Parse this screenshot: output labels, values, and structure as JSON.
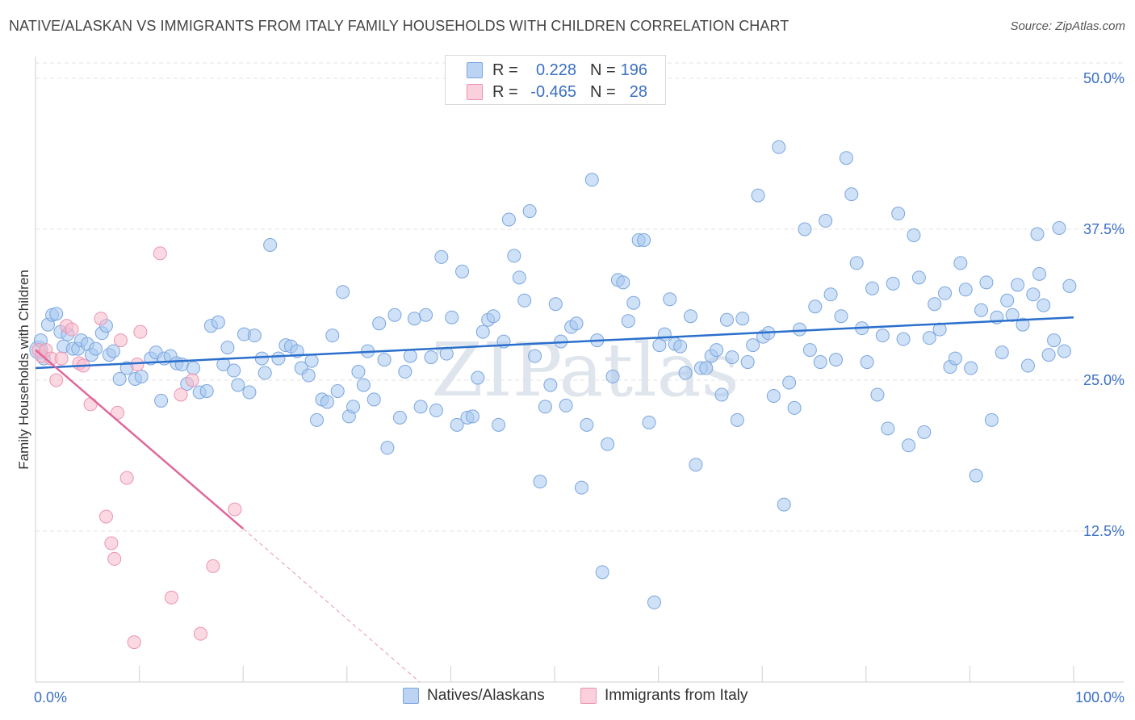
{
  "title": "NATIVE/ALASKAN VS IMMIGRANTS FROM ITALY FAMILY HOUSEHOLDS WITH CHILDREN CORRELATION CHART",
  "source": "Source: ZipAtlas.com",
  "watermark": "ZIPatlas",
  "colors": {
    "blue_fill": "#a8c8f0",
    "blue_stroke": "#7ba6de",
    "blue_line": "#2a6fcc",
    "pink_fill": "#f7b9cc",
    "pink_stroke": "#ec93b0",
    "pink_line": "#e0679a",
    "axis_label": "#3b6fc4",
    "grid": "#e3e3e3"
  },
  "legend_stats": [
    {
      "r_label": "R =",
      "r_value": "0.228",
      "n_label": "N =",
      "n_value": "196"
    },
    {
      "r_label": "R =",
      "r_value": "-0.465",
      "n_label": "N =",
      "n_value": "28"
    }
  ],
  "legend_series": [
    "Natives/Alaskans",
    "Immigrants from Italy"
  ],
  "chart_data": {
    "type": "scatter",
    "title": "NATIVE/ALASKAN VS IMMIGRANTS FROM ITALY FAMILY HOUSEHOLDS WITH CHILDREN CORRELATION CHART",
    "xlabel": "",
    "ylabel": "Family Households with Children",
    "xlim": [
      0,
      100
    ],
    "ylim": [
      0,
      50
    ],
    "x_tick_labels": [
      "0.0%",
      "100.0%"
    ],
    "y_ticks": [
      12.5,
      25.0,
      37.5,
      50.0
    ],
    "y_tick_labels": [
      "12.5%",
      "25.0%",
      "37.5%",
      "50.0%"
    ],
    "grid": true,
    "legend_position": "bottom",
    "series": [
      {
        "name": "Natives/Alaskans",
        "trend": {
          "x": [
            0,
            100
          ],
          "y": [
            26.0,
            30.2
          ]
        },
        "points": [
          [
            0.3,
            27.5
          ],
          [
            0.5,
            28.3
          ],
          [
            0.8,
            26.8
          ],
          [
            1.2,
            29.6
          ],
          [
            1.6,
            30.4
          ],
          [
            2.0,
            30.5
          ],
          [
            2.4,
            29.0
          ],
          [
            2.7,
            27.8
          ],
          [
            3.1,
            28.8
          ],
          [
            3.6,
            27.6
          ],
          [
            4.1,
            27.6
          ],
          [
            4.4,
            28.3
          ],
          [
            5.0,
            28.0
          ],
          [
            5.4,
            27.1
          ],
          [
            5.8,
            27.6
          ],
          [
            6.4,
            28.9
          ],
          [
            6.8,
            29.5
          ],
          [
            7.1,
            27.1
          ],
          [
            7.5,
            27.4
          ],
          [
            8.1,
            25.1
          ],
          [
            8.8,
            26.0
          ],
          [
            9.6,
            25.1
          ],
          [
            10.2,
            25.3
          ],
          [
            11.1,
            26.8
          ],
          [
            11.6,
            27.3
          ],
          [
            12.1,
            23.3
          ],
          [
            12.4,
            26.8
          ],
          [
            13.0,
            27.0
          ],
          [
            13.6,
            26.4
          ],
          [
            14.1,
            26.3
          ],
          [
            14.6,
            24.7
          ],
          [
            15.2,
            26.0
          ],
          [
            15.8,
            24.0
          ],
          [
            16.5,
            24.1
          ],
          [
            16.9,
            29.5
          ],
          [
            17.6,
            29.8
          ],
          [
            18.1,
            26.3
          ],
          [
            18.5,
            27.7
          ],
          [
            19.1,
            25.8
          ],
          [
            19.5,
            24.6
          ],
          [
            20.1,
            28.8
          ],
          [
            20.6,
            24.0
          ],
          [
            21.1,
            28.7
          ],
          [
            21.8,
            26.8
          ],
          [
            22.1,
            25.6
          ],
          [
            22.6,
            36.2
          ],
          [
            23.4,
            26.8
          ],
          [
            24.1,
            27.9
          ],
          [
            24.6,
            27.8
          ],
          [
            25.2,
            27.4
          ],
          [
            25.6,
            26.0
          ],
          [
            26.3,
            25.4
          ],
          [
            26.6,
            26.6
          ],
          [
            27.1,
            21.7
          ],
          [
            27.6,
            23.4
          ],
          [
            28.1,
            23.2
          ],
          [
            28.6,
            28.7
          ],
          [
            29.1,
            24.1
          ],
          [
            29.6,
            32.3
          ],
          [
            30.2,
            22.0
          ],
          [
            30.6,
            22.8
          ],
          [
            31.1,
            25.7
          ],
          [
            31.6,
            24.6
          ],
          [
            32.0,
            27.4
          ],
          [
            32.6,
            23.4
          ],
          [
            33.1,
            29.7
          ],
          [
            33.6,
            26.7
          ],
          [
            33.9,
            19.4
          ],
          [
            34.6,
            30.4
          ],
          [
            35.1,
            21.9
          ],
          [
            35.6,
            25.7
          ],
          [
            36.1,
            27.0
          ],
          [
            36.5,
            30.1
          ],
          [
            37.1,
            22.8
          ],
          [
            37.6,
            30.4
          ],
          [
            38.1,
            26.9
          ],
          [
            38.6,
            22.5
          ],
          [
            39.1,
            35.2
          ],
          [
            39.6,
            27.2
          ],
          [
            40.1,
            30.2
          ],
          [
            40.6,
            21.3
          ],
          [
            41.1,
            34.0
          ],
          [
            41.6,
            21.9
          ],
          [
            42.1,
            22.0
          ],
          [
            42.6,
            25.2
          ],
          [
            43.1,
            29.0
          ],
          [
            43.6,
            30.0
          ],
          [
            44.1,
            30.3
          ],
          [
            44.6,
            21.3
          ],
          [
            45.1,
            28.2
          ],
          [
            45.6,
            38.3
          ],
          [
            46.1,
            35.3
          ],
          [
            46.6,
            33.5
          ],
          [
            47.1,
            31.6
          ],
          [
            47.6,
            39.0
          ],
          [
            48.1,
            27.0
          ],
          [
            48.6,
            16.6
          ],
          [
            49.1,
            22.8
          ],
          [
            49.6,
            24.6
          ],
          [
            50.1,
            31.3
          ],
          [
            50.6,
            28.2
          ],
          [
            51.1,
            22.9
          ],
          [
            51.6,
            29.4
          ],
          [
            52.1,
            29.7
          ],
          [
            52.6,
            16.1
          ],
          [
            53.1,
            21.3
          ],
          [
            53.6,
            41.6
          ],
          [
            54.1,
            28.3
          ],
          [
            54.6,
            9.1
          ],
          [
            55.1,
            19.7
          ],
          [
            55.6,
            25.3
          ],
          [
            56.1,
            33.3
          ],
          [
            56.6,
            33.1
          ],
          [
            57.1,
            29.9
          ],
          [
            57.6,
            31.4
          ],
          [
            58.1,
            36.6
          ],
          [
            58.6,
            36.6
          ],
          [
            59.1,
            21.5
          ],
          [
            59.6,
            6.6
          ],
          [
            60.1,
            27.9
          ],
          [
            60.6,
            28.8
          ],
          [
            61.1,
            31.7
          ],
          [
            61.6,
            28.0
          ],
          [
            62.1,
            27.8
          ],
          [
            62.6,
            25.6
          ],
          [
            63.1,
            30.3
          ],
          [
            63.6,
            18.0
          ],
          [
            64.1,
            26.0
          ],
          [
            64.6,
            26.0
          ],
          [
            65.1,
            27.0
          ],
          [
            65.6,
            27.5
          ],
          [
            66.1,
            23.8
          ],
          [
            66.6,
            30.0
          ],
          [
            67.1,
            26.9
          ],
          [
            67.6,
            21.7
          ],
          [
            68.1,
            30.1
          ],
          [
            68.6,
            26.5
          ],
          [
            69.1,
            27.9
          ],
          [
            69.6,
            40.3
          ],
          [
            70.1,
            28.6
          ],
          [
            70.6,
            28.9
          ],
          [
            71.1,
            23.7
          ],
          [
            71.6,
            44.3
          ],
          [
            72.1,
            14.7
          ],
          [
            72.6,
            24.8
          ],
          [
            73.1,
            22.7
          ],
          [
            73.6,
            29.2
          ],
          [
            74.1,
            37.5
          ],
          [
            74.6,
            27.5
          ],
          [
            75.1,
            31.1
          ],
          [
            75.6,
            26.5
          ],
          [
            76.1,
            38.2
          ],
          [
            76.6,
            32.1
          ],
          [
            77.1,
            26.7
          ],
          [
            77.6,
            30.3
          ],
          [
            78.1,
            43.4
          ],
          [
            78.6,
            40.4
          ],
          [
            79.1,
            34.7
          ],
          [
            79.6,
            29.3
          ],
          [
            80.1,
            26.5
          ],
          [
            80.6,
            32.6
          ],
          [
            81.1,
            23.8
          ],
          [
            81.6,
            28.7
          ],
          [
            82.1,
            21.0
          ],
          [
            82.6,
            33.0
          ],
          [
            83.1,
            38.8
          ],
          [
            83.6,
            28.4
          ],
          [
            84.1,
            19.6
          ],
          [
            84.6,
            37.0
          ],
          [
            85.1,
            33.5
          ],
          [
            85.6,
            20.7
          ],
          [
            86.1,
            28.5
          ],
          [
            86.6,
            31.3
          ],
          [
            87.1,
            29.2
          ],
          [
            87.6,
            32.2
          ],
          [
            88.1,
            26.1
          ],
          [
            88.6,
            26.8
          ],
          [
            89.1,
            34.7
          ],
          [
            89.6,
            32.5
          ],
          [
            90.1,
            26.0
          ],
          [
            90.6,
            17.1
          ],
          [
            91.1,
            30.8
          ],
          [
            91.6,
            33.1
          ],
          [
            92.1,
            21.7
          ],
          [
            92.6,
            30.2
          ],
          [
            93.1,
            27.3
          ],
          [
            93.6,
            31.6
          ],
          [
            94.1,
            30.4
          ],
          [
            94.6,
            32.9
          ],
          [
            95.1,
            29.6
          ],
          [
            95.6,
            26.2
          ],
          [
            96.1,
            32.1
          ],
          [
            96.5,
            37.1
          ],
          [
            96.7,
            33.8
          ],
          [
            97.1,
            31.2
          ],
          [
            97.6,
            27.1
          ],
          [
            98.1,
            28.3
          ],
          [
            98.6,
            37.6
          ],
          [
            99.1,
            27.4
          ],
          [
            99.6,
            32.8
          ]
        ]
      },
      {
        "name": "Immigrants from Italy",
        "trend": {
          "x": [
            0,
            20,
            37
          ],
          "y": [
            27.5,
            12.7,
            -0.5
          ]
        },
        "points": [
          [
            0.3,
            27.5
          ],
          [
            0.6,
            27.0
          ],
          [
            1.0,
            27.5
          ],
          [
            1.5,
            26.8
          ],
          [
            2.0,
            25.0
          ],
          [
            2.5,
            26.8
          ],
          [
            3.0,
            29.5
          ],
          [
            3.5,
            29.2
          ],
          [
            4.2,
            26.4
          ],
          [
            4.6,
            26.2
          ],
          [
            5.3,
            23.0
          ],
          [
            6.3,
            30.1
          ],
          [
            6.8,
            13.7
          ],
          [
            7.3,
            11.5
          ],
          [
            7.6,
            10.2
          ],
          [
            7.9,
            22.3
          ],
          [
            8.2,
            28.3
          ],
          [
            8.8,
            16.9
          ],
          [
            9.8,
            26.3
          ],
          [
            10.1,
            29.0
          ],
          [
            12.0,
            35.5
          ],
          [
            13.1,
            7.0
          ],
          [
            14.0,
            23.8
          ],
          [
            15.1,
            25.0
          ],
          [
            15.9,
            4.0
          ],
          [
            17.1,
            9.6
          ],
          [
            19.2,
            14.3
          ],
          [
            9.5,
            3.3
          ]
        ]
      }
    ]
  }
}
